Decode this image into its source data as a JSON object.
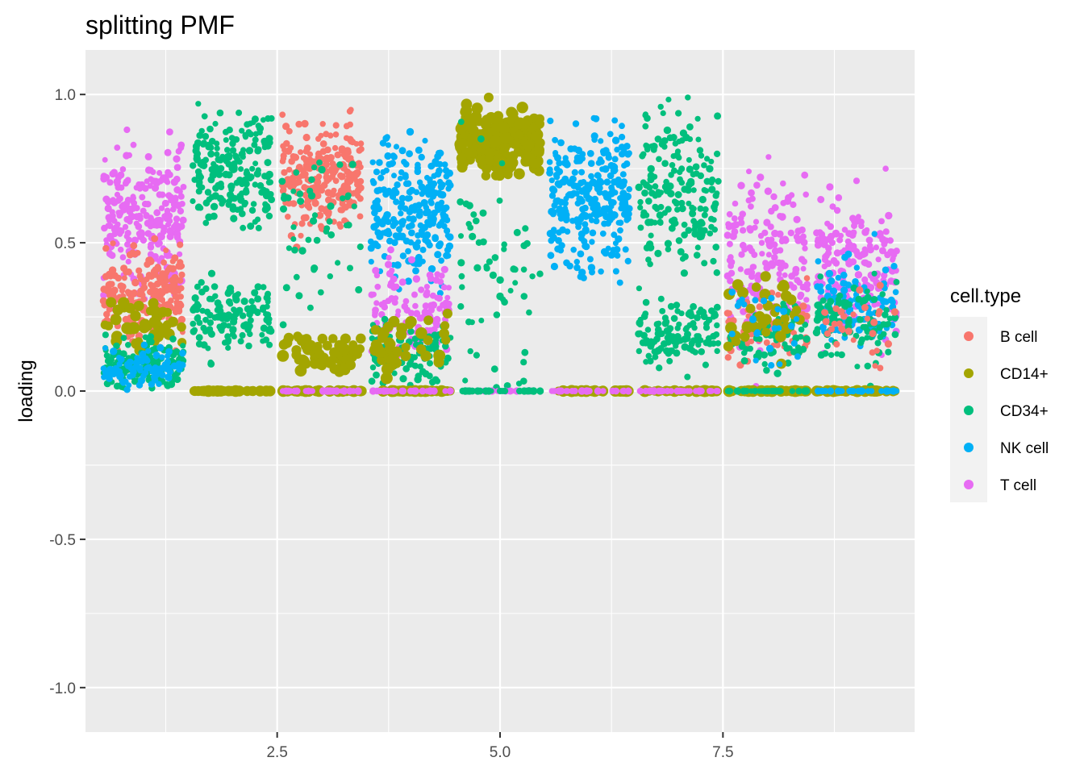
{
  "chart_data": {
    "type": "scatter",
    "title": "splitting PMF",
    "xlabel": "",
    "ylabel": "loading",
    "xlim": [
      0.35,
      9.65
    ],
    "ylim": [
      -1.15,
      1.15
    ],
    "x_ticks": [
      2.5,
      5.0,
      7.5
    ],
    "x_tick_labels": [
      "2.5",
      "5.0",
      "7.5"
    ],
    "y_ticks": [
      -1.0,
      -0.5,
      0.0,
      0.5,
      1.0
    ],
    "y_tick_labels": [
      "-1.0",
      "-0.5",
      "0.0",
      "0.5",
      "1.0"
    ],
    "grid": true,
    "legend": {
      "title": "cell.type",
      "position": "right"
    },
    "series": [
      {
        "name": "B cell",
        "color": "#F8766D"
      },
      {
        "name": "CD14+",
        "color": "#A3A500"
      },
      {
        "name": "CD34+",
        "color": "#00BF7D"
      },
      {
        "name": "NK cell",
        "color": "#00B0F6"
      },
      {
        "name": "T cell",
        "color": "#E76BF3"
      }
    ],
    "factors": [
      {
        "x": 1,
        "clusters": [
          {
            "series": "T cell",
            "mean": 0.58,
            "spread": 0.12,
            "count": 260
          },
          {
            "series": "B cell",
            "mean": 0.32,
            "spread": 0.08,
            "count": 200
          },
          {
            "series": "CD14+",
            "mean": 0.22,
            "spread": 0.05,
            "count": 40
          },
          {
            "series": "CD34+",
            "mean": 0.09,
            "spread": 0.04,
            "count": 140
          },
          {
            "series": "NK cell",
            "mean": 0.08,
            "spread": 0.03,
            "count": 90
          }
        ]
      },
      {
        "x": 2,
        "clusters": [
          {
            "series": "CD34+",
            "mean": 0.75,
            "spread": 0.1,
            "count": 200
          },
          {
            "series": "CD34+",
            "mean": 0.25,
            "spread": 0.06,
            "count": 130
          },
          {
            "series": "NK cell",
            "mean": 0.0,
            "spread": 0.0,
            "count": 40
          },
          {
            "series": "T cell",
            "mean": 0.0,
            "spread": 0.0,
            "count": 30
          },
          {
            "series": "CD14+",
            "mean": 0.0,
            "spread": 0.0,
            "count": 35
          }
        ]
      },
      {
        "x": 3,
        "clusters": [
          {
            "series": "B cell",
            "mean": 0.72,
            "spread": 0.09,
            "count": 260
          },
          {
            "series": "CD34+",
            "mean": 0.55,
            "spread": 0.12,
            "count": 50
          },
          {
            "series": "CD14+",
            "mean": 0.13,
            "spread": 0.03,
            "count": 60
          },
          {
            "series": "CD14+",
            "mean": 0.0,
            "spread": 0.0,
            "count": 35
          },
          {
            "series": "T cell",
            "mean": 0.0,
            "spread": 0.0,
            "count": 30
          }
        ]
      },
      {
        "x": 4,
        "clusters": [
          {
            "series": "NK cell",
            "mean": 0.62,
            "spread": 0.11,
            "count": 250
          },
          {
            "series": "T cell",
            "mean": 0.28,
            "spread": 0.08,
            "count": 120
          },
          {
            "series": "CD34+",
            "mean": 0.13,
            "spread": 0.05,
            "count": 100
          },
          {
            "series": "CD14+",
            "mean": 0.15,
            "spread": 0.05,
            "count": 40
          },
          {
            "series": "CD14+",
            "mean": 0.0,
            "spread": 0.0,
            "count": 35
          },
          {
            "series": "T cell",
            "mean": 0.0,
            "spread": 0.0,
            "count": 30
          }
        ]
      },
      {
        "x": 5,
        "clusters": [
          {
            "series": "CD14+",
            "mean": 0.84,
            "spread": 0.05,
            "count": 220
          },
          {
            "series": "CD34+",
            "mean": 0.4,
            "spread": 0.2,
            "count": 60
          },
          {
            "series": "T cell",
            "mean": 0.0,
            "spread": 0.0,
            "count": 30
          },
          {
            "series": "CD34+",
            "mean": 0.0,
            "spread": 0.0,
            "count": 30
          }
        ]
      },
      {
        "x": 6,
        "clusters": [
          {
            "series": "NK cell",
            "mean": 0.66,
            "spread": 0.12,
            "count": 280
          },
          {
            "series": "CD14+",
            "mean": 0.0,
            "spread": 0.0,
            "count": 35
          },
          {
            "series": "T cell",
            "mean": 0.0,
            "spread": 0.0,
            "count": 30
          }
        ]
      },
      {
        "x": 7,
        "clusters": [
          {
            "series": "CD34+",
            "mean": 0.68,
            "spread": 0.14,
            "count": 180
          },
          {
            "series": "CD34+",
            "mean": 0.2,
            "spread": 0.05,
            "count": 120
          },
          {
            "series": "CD14+",
            "mean": 0.0,
            "spread": 0.0,
            "count": 35
          },
          {
            "series": "T cell",
            "mean": 0.0,
            "spread": 0.0,
            "count": 30
          }
        ]
      },
      {
        "x": 8,
        "clusters": [
          {
            "series": "T cell",
            "mean": 0.42,
            "spread": 0.14,
            "count": 180
          },
          {
            "series": "B cell",
            "mean": 0.22,
            "spread": 0.07,
            "count": 60
          },
          {
            "series": "CD34+",
            "mean": 0.18,
            "spread": 0.06,
            "count": 60
          },
          {
            "series": "CD14+",
            "mean": 0.27,
            "spread": 0.07,
            "count": 35
          },
          {
            "series": "NK cell",
            "mean": 0.2,
            "spread": 0.08,
            "count": 25
          },
          {
            "series": "CD14+",
            "mean": 0.0,
            "spread": 0.0,
            "count": 35
          },
          {
            "series": "CD34+",
            "mean": 0.0,
            "spread": 0.0,
            "count": 30
          }
        ]
      },
      {
        "x": 9,
        "clusters": [
          {
            "series": "T cell",
            "mean": 0.42,
            "spread": 0.12,
            "count": 190
          },
          {
            "series": "NK cell",
            "mean": 0.3,
            "spread": 0.08,
            "count": 90
          },
          {
            "series": "CD34+",
            "mean": 0.24,
            "spread": 0.08,
            "count": 90
          },
          {
            "series": "B cell",
            "mean": 0.22,
            "spread": 0.06,
            "count": 30
          },
          {
            "series": "CD14+",
            "mean": 0.0,
            "spread": 0.0,
            "count": 35
          },
          {
            "series": "NK cell",
            "mean": 0.0,
            "spread": 0.0,
            "count": 30
          }
        ]
      }
    ]
  }
}
